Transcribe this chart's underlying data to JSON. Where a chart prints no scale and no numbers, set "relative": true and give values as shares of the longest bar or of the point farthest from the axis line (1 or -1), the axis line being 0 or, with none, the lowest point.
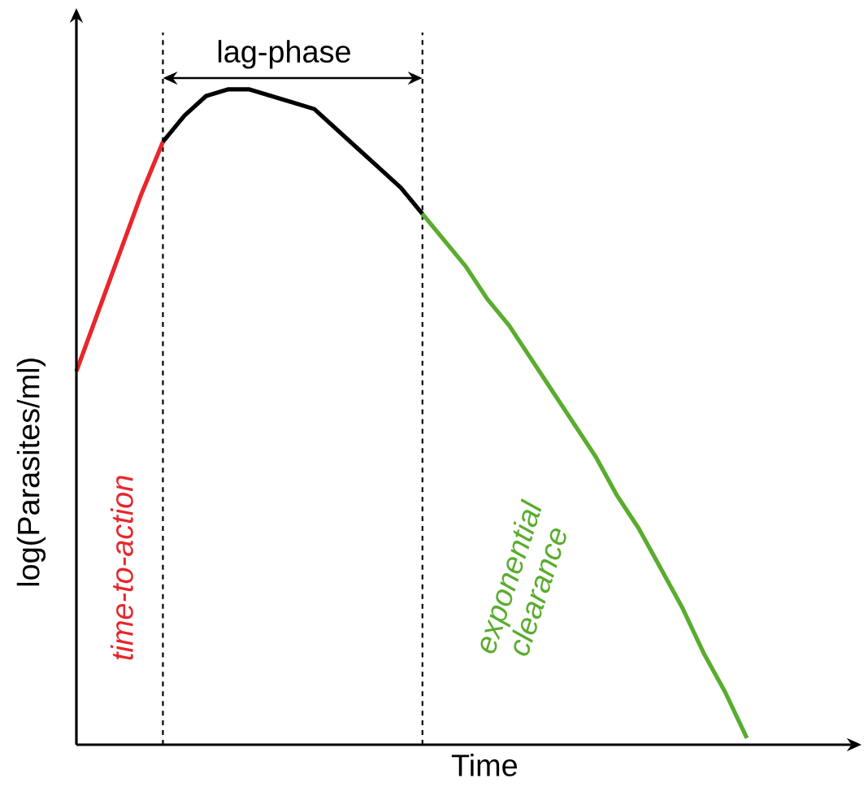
{
  "chart_data": {
    "type": "line",
    "relative": true,
    "xlabel": "Time",
    "ylabel": "log(Parasites/ml)",
    "marker": "none",
    "line_style": "solid",
    "categories": [
      null,
      null,
      null,
      null,
      null,
      null,
      null,
      null,
      null,
      null,
      null,
      null,
      null,
      null,
      null,
      null,
      null,
      null,
      null,
      null,
      null,
      null,
      null,
      null,
      null,
      null,
      null,
      null,
      null,
      null,
      null,
      null,
      null,
      null,
      null,
      null,
      null
    ],
    "series": [
      {
        "name": "time-to-action",
        "color": "#e8262b",
        "values": [
          0.57,
          0.66,
          0.75,
          0.84,
          0.92,
          null,
          null,
          null,
          null,
          null,
          null,
          null,
          null,
          null,
          null,
          null,
          null,
          null,
          null,
          null,
          null,
          null,
          null,
          null,
          null,
          null,
          null,
          null,
          null,
          null,
          null,
          null,
          null,
          null,
          null,
          null,
          null
        ]
      },
      {
        "color": "#000000",
        "values": [
          null,
          null,
          null,
          null,
          0.92,
          0.96,
          0.99,
          1.0,
          1.0,
          0.99,
          0.98,
          0.97,
          0.94,
          0.91,
          0.88,
          0.85,
          0.81,
          null,
          null,
          null,
          null,
          null,
          null,
          null,
          null,
          null,
          null,
          null,
          null,
          null,
          null,
          null,
          null,
          null,
          null,
          null,
          null
        ]
      },
      {
        "name": "exponential clearance",
        "color": "#5aac2e",
        "values": [
          null,
          null,
          null,
          null,
          null,
          null,
          null,
          null,
          null,
          null,
          null,
          null,
          null,
          null,
          null,
          null,
          0.81,
          0.77,
          0.73,
          0.68,
          0.64,
          0.59,
          0.54,
          0.49,
          0.44,
          0.38,
          0.33,
          0.27,
          0.21,
          0.14,
          0.08,
          0.01,
          null,
          null,
          null,
          null,
          null
        ]
      }
    ],
    "annotations": [
      "lag-phase"
    ]
  }
}
